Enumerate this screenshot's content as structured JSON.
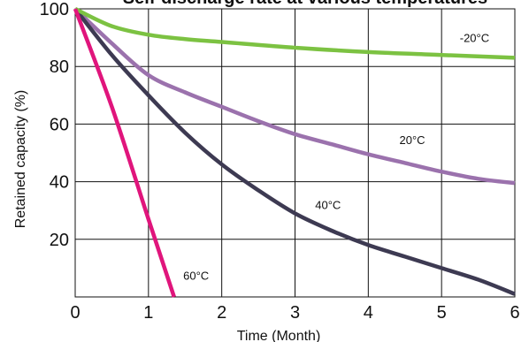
{
  "chart_data": {
    "type": "line",
    "title": "Self-discharge rate at various temperatures",
    "xlabel": "Time (Month)",
    "ylabel": "Retained capacity (%)",
    "xlim": [
      0,
      6
    ],
    "ylim": [
      0,
      100
    ],
    "x_ticks": [
      "0",
      "1",
      "2",
      "3",
      "4",
      "5",
      "6"
    ],
    "y_ticks": [
      "100",
      "80",
      "60",
      "40",
      "20"
    ],
    "grid": true,
    "series": [
      {
        "name": "-20°C",
        "color": "#7cc242",
        "x": [
          0,
          0.5,
          1,
          1.5,
          2,
          3,
          4,
          5,
          6
        ],
        "y": [
          100,
          94,
          91,
          89.5,
          88.5,
          86.5,
          85,
          84,
          83
        ]
      },
      {
        "name": "20°C",
        "color": "#9b72ad",
        "x": [
          0,
          0.5,
          1,
          1.5,
          2,
          2.5,
          3,
          3.5,
          4,
          4.5,
          5,
          5.5,
          6
        ],
        "y": [
          100,
          88,
          77,
          71,
          66,
          61,
          56.5,
          53,
          49.5,
          46.5,
          43.5,
          41,
          39.5
        ]
      },
      {
        "name": "40°C",
        "color": "#3d3a52",
        "x": [
          0,
          0.5,
          1,
          1.5,
          2,
          2.5,
          3,
          3.5,
          4,
          4.5,
          5,
          5.5,
          6
        ],
        "y": [
          100,
          84,
          70,
          57,
          46,
          37,
          29,
          23,
          18,
          14,
          10,
          6,
          1
        ]
      },
      {
        "name": "60°C",
        "color": "#e0157c",
        "x": [
          0,
          0.5,
          1,
          1.35
        ],
        "y": [
          100,
          66,
          27,
          0
        ]
      }
    ]
  }
}
